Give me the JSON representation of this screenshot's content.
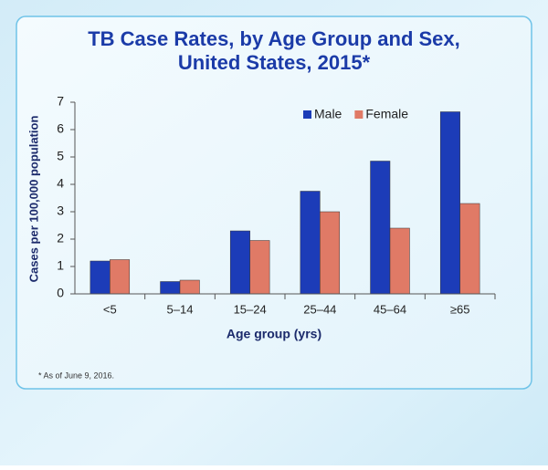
{
  "chart_data": {
    "type": "bar",
    "title": [
      "TB Case Rates, by Age Group and Sex,",
      "United States, 2015*"
    ],
    "xlabel": "Age group (yrs)",
    "ylabel": "Cases per 100,000 population",
    "footnote": "* As of June 9, 2016.",
    "categories": [
      "<5",
      "5–14",
      "15–24",
      "25–44",
      "45–64",
      "≥65"
    ],
    "series": [
      {
        "name": "Male",
        "color": "#1c3cb8",
        "values": [
          1.2,
          0.45,
          2.3,
          3.75,
          4.85,
          6.65
        ]
      },
      {
        "name": "Female",
        "color": "#e07a66",
        "values": [
          1.25,
          0.5,
          1.95,
          3.0,
          2.4,
          3.3
        ]
      }
    ],
    "ylim": [
      0,
      7
    ],
    "yticks": [
      0,
      1,
      2,
      3,
      4,
      5,
      6,
      7
    ],
    "grid": false,
    "legend": "top-right"
  }
}
